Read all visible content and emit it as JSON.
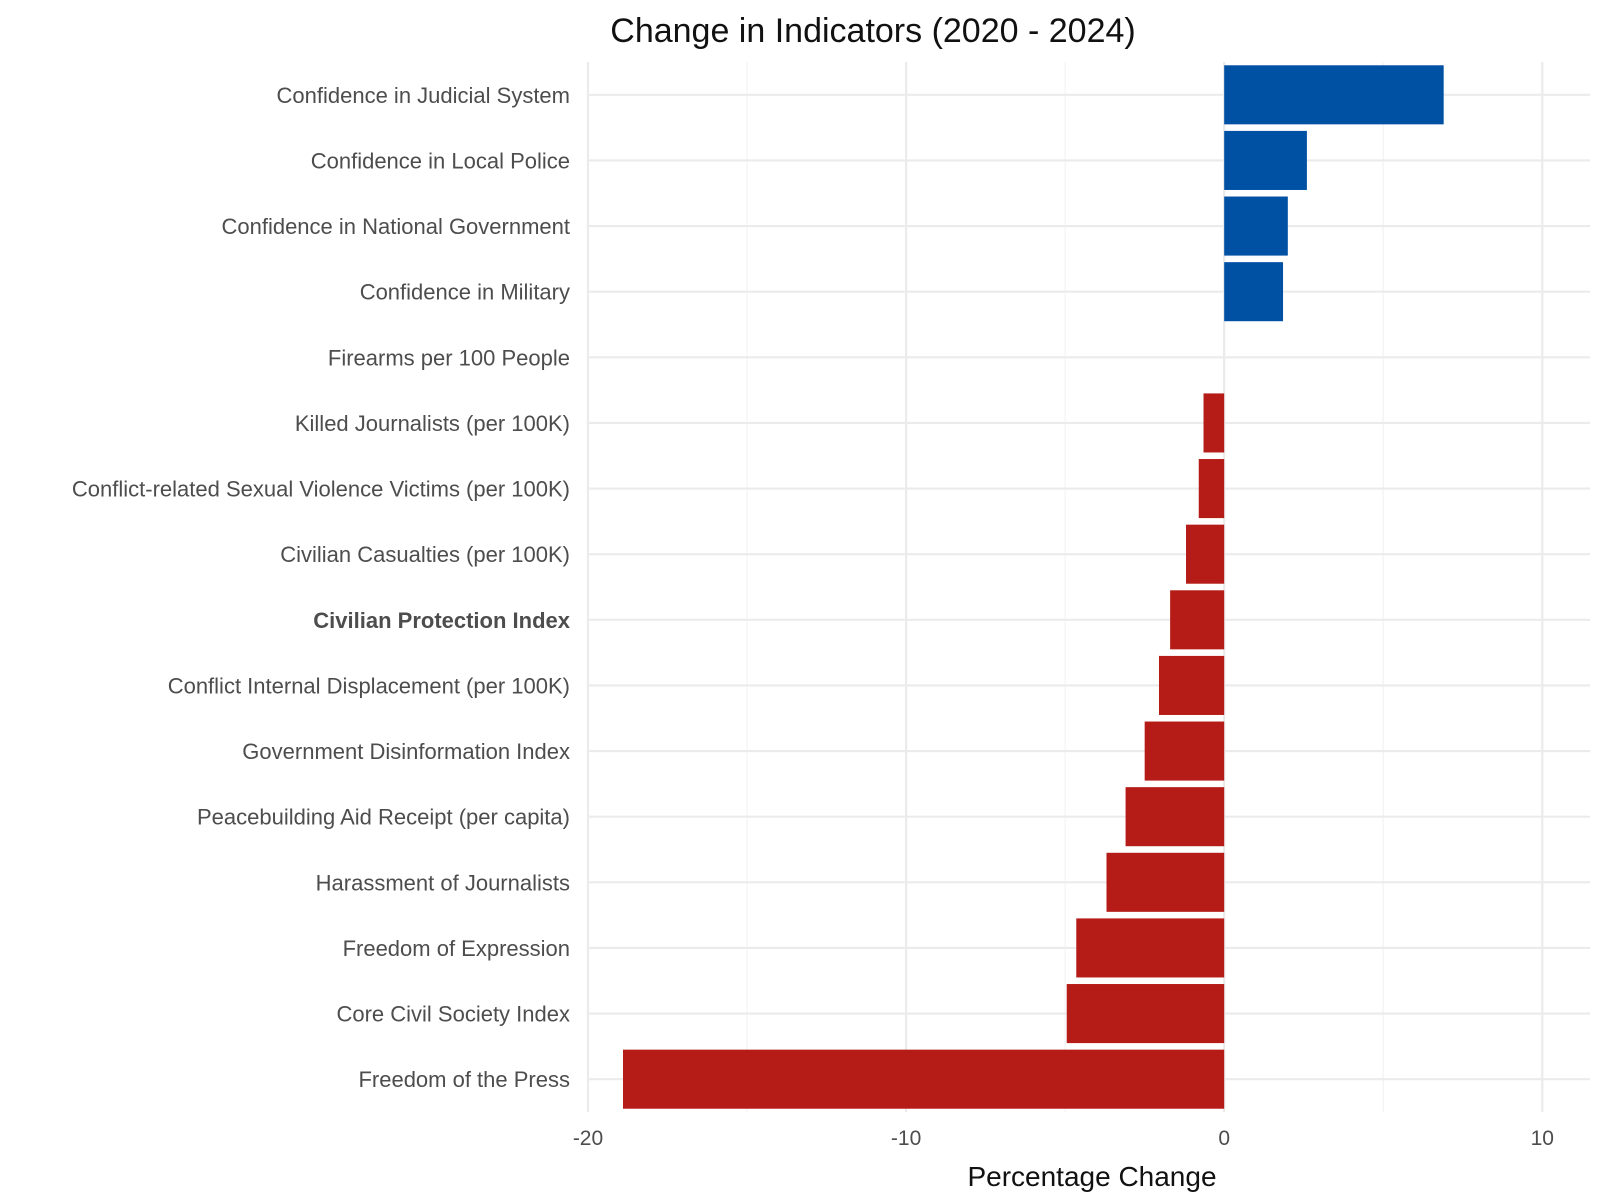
{
  "chart_data": {
    "type": "bar",
    "orientation": "horizontal",
    "title": "Change in Indicators (2020 - 2024)",
    "xlabel": "Percentage Change",
    "ylabel": "",
    "xlim": [
      -20,
      11.5
    ],
    "xticks": [
      -20,
      -10,
      0,
      10
    ],
    "xtick_labels": [
      "-20",
      "-10",
      "0",
      "10"
    ],
    "grid": true,
    "colors": {
      "positive": "#0050a4",
      "negative": "#b51c18"
    },
    "categories": [
      "Confidence in Judicial System",
      "Confidence in Local Police",
      "Confidence in National Government",
      "Confidence in Military",
      "Firearms per 100 People",
      "Killed Journalists (per 100K)",
      "Conflict-related Sexual Violence Victims (per 100K)",
      "Civilian Casualties (per 100K)",
      "Civilian Protection Index",
      "Conflict Internal Displacement (per 100K)",
      "Government Disinformation Index",
      "Peacebuilding Aid Receipt (per capita)",
      "Harassment of Journalists",
      "Freedom of Expression",
      "Core Civil Society Index",
      "Freedom of the Press"
    ],
    "values": [
      6.9,
      2.6,
      2.0,
      1.85,
      0,
      -0.65,
      -0.8,
      -1.2,
      -1.7,
      -2.05,
      -2.5,
      -3.1,
      -3.7,
      -4.65,
      -4.95,
      -18.9
    ],
    "bold_categories": [
      "Civilian Protection Index"
    ]
  }
}
